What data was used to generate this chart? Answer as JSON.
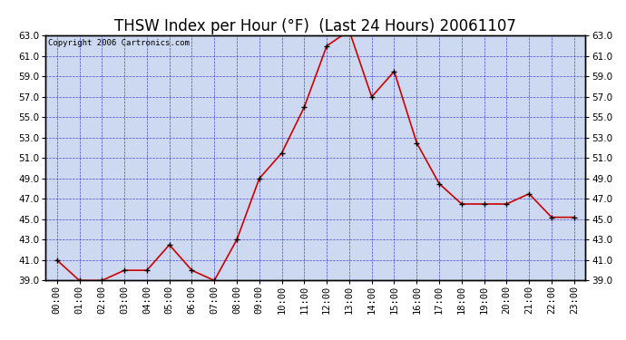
{
  "title": "THSW Index per Hour (°F)  (Last 24 Hours) 20061107",
  "copyright": "Copyright 2006 Cartronics.com",
  "x_labels": [
    "00:00",
    "01:00",
    "02:00",
    "03:00",
    "04:00",
    "05:00",
    "06:00",
    "07:00",
    "08:00",
    "09:00",
    "10:00",
    "11:00",
    "12:00",
    "13:00",
    "14:00",
    "15:00",
    "16:00",
    "17:00",
    "18:00",
    "19:00",
    "20:00",
    "21:00",
    "22:00",
    "23:00"
  ],
  "y_values": [
    41.0,
    39.0,
    39.0,
    40.0,
    40.0,
    42.5,
    40.0,
    39.0,
    43.0,
    49.0,
    51.5,
    56.0,
    62.0,
    63.5,
    57.0,
    59.5,
    52.5,
    48.5,
    46.5,
    46.5,
    46.5,
    47.5,
    45.2,
    45.2
  ],
  "line_color": "#cc0000",
  "marker_color": "#000000",
  "fig_bg_color": "#ffffff",
  "plot_bg_color": "#ccd9f0",
  "grid_color": "#2222cc",
  "ylim": [
    39.0,
    63.0
  ],
  "yticks": [
    39.0,
    41.0,
    43.0,
    45.0,
    47.0,
    49.0,
    51.0,
    53.0,
    55.0,
    57.0,
    59.0,
    61.0,
    63.0
  ],
  "title_fontsize": 12,
  "copyright_fontsize": 6.5,
  "tick_fontsize": 7.5
}
